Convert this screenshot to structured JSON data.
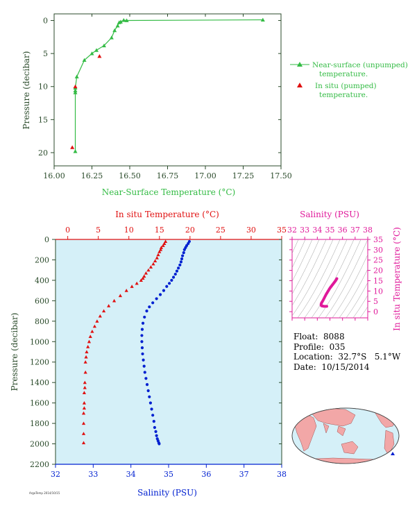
{
  "info": {
    "float": "Float:  8088",
    "profile": "Profile:  035",
    "location": "Location:  32.7°S   5.1°W",
    "date": "Date:  10/15/2014"
  },
  "footer": "ArgoTemp 2014/10/15",
  "colors": {
    "green": "#33bb44",
    "red": "#e01010",
    "blue": "#0020d0",
    "magenta": "#e0199a",
    "panel_bg": "#d5f0f8",
    "axis_dark": "#2a4a2a"
  },
  "chart_data": [
    {
      "type": "line",
      "id": "near-surface",
      "xlabel": "Near-Surface Temperature (°C)",
      "ylabel": "Pressure (decibar)",
      "xlim": [
        16.0,
        17.5
      ],
      "ylim": [
        22,
        -1
      ],
      "xticks": [
        16.0,
        16.25,
        16.5,
        16.75,
        17.0,
        17.25,
        17.5
      ],
      "xticklabels": [
        "16.00",
        "16.25",
        "16.50",
        "16.75",
        "17.00",
        "17.25",
        "17.50"
      ],
      "yticks": [
        0,
        5,
        10,
        15,
        20
      ],
      "series": [
        {
          "name": "Near-surface (unpumped) temperature.",
          "marker": "triangle",
          "color": "#33bb44",
          "x": [
            17.38,
            16.48,
            16.46,
            16.44,
            16.43,
            16.42,
            16.4,
            16.38,
            16.33,
            16.28,
            16.25,
            16.2,
            16.15,
            16.14,
            16.14,
            16.14,
            16.14
          ],
          "y": [
            -0.1,
            0.0,
            -0.05,
            0.2,
            0.3,
            0.8,
            1.5,
            2.6,
            3.8,
            4.5,
            5.0,
            6.0,
            8.5,
            10.2,
            10.6,
            10.9,
            19.8
          ]
        },
        {
          "name": "In situ (pumped) temperature.",
          "marker": "triangle",
          "color": "#e01010",
          "x": [
            16.3,
            16.14,
            16.12
          ],
          "y": [
            5.4,
            10.0,
            19.2
          ]
        }
      ]
    },
    {
      "type": "scatter",
      "id": "profile",
      "ylabel": "Pressure (decibar)",
      "xlabel_top": "In situ Temperature (°C)",
      "xlabel_bottom": "Salinity (PSU)",
      "ylim": [
        2200,
        0
      ],
      "yticks": [
        0,
        200,
        400,
        600,
        800,
        1000,
        1200,
        1400,
        1600,
        1800,
        2000,
        2200
      ],
      "temp_xlim": [
        -2,
        35
      ],
      "temp_xticks": [
        0,
        5,
        10,
        15,
        20,
        25,
        30,
        35
      ],
      "sal_xlim": [
        32,
        38
      ],
      "sal_xticks": [
        32,
        33,
        34,
        35,
        36,
        37,
        38
      ],
      "temperature": {
        "name": "In situ Temperature (°C)",
        "color": "#e01010",
        "marker": "triangle",
        "x": [
          16.0,
          15.8,
          15.6,
          15.3,
          15.2,
          15.0,
          14.8,
          14.6,
          14.3,
          14.0,
          13.6,
          13.2,
          12.8,
          12.5,
          12.3,
          12.0,
          11.3,
          10.5,
          9.6,
          8.6,
          7.6,
          6.7,
          5.9,
          5.3,
          4.8,
          4.4,
          4.0,
          3.7,
          3.5,
          3.3,
          3.1,
          3.0,
          2.9,
          2.9,
          2.8,
          2.8,
          2.7,
          2.7,
          2.7,
          2.6,
          2.6,
          2.6,
          2.6
        ],
        "y": [
          20,
          40,
          60,
          80,
          100,
          120,
          150,
          180,
          210,
          240,
          270,
          300,
          330,
          360,
          380,
          400,
          430,
          460,
          500,
          550,
          600,
          650,
          700,
          750,
          800,
          850,
          900,
          950,
          1000,
          1050,
          1100,
          1150,
          1200,
          1300,
          1400,
          1450,
          1500,
          1600,
          1650,
          1700,
          1800,
          1900,
          1990
        ]
      },
      "salinity": {
        "name": "Salinity (PSU)",
        "color": "#0020d0",
        "marker": "circle",
        "x": [
          35.55,
          35.52,
          35.48,
          35.45,
          35.42,
          35.4,
          35.37,
          35.35,
          35.33,
          35.3,
          35.26,
          35.22,
          35.18,
          35.13,
          35.08,
          35.02,
          34.95,
          34.87,
          34.78,
          34.68,
          34.58,
          34.49,
          34.42,
          34.36,
          34.32,
          34.3,
          34.29,
          34.29,
          34.3,
          34.31,
          34.33,
          34.35,
          34.37,
          34.4,
          34.43,
          34.46,
          34.49,
          34.52,
          34.55,
          34.58,
          34.61,
          34.63,
          34.66,
          34.68,
          34.7,
          34.72,
          34.74,
          34.75
        ],
        "y": [
          20,
          40,
          60,
          80,
          100,
          130,
          160,
          190,
          220,
          250,
          280,
          310,
          340,
          370,
          400,
          430,
          460,
          500,
          540,
          580,
          620,
          660,
          700,
          760,
          820,
          880,
          940,
          1000,
          1060,
          1120,
          1180,
          1240,
          1300,
          1360,
          1420,
          1480,
          1540,
          1600,
          1660,
          1720,
          1780,
          1840,
          1880,
          1920,
          1950,
          1970,
          1990,
          2000
        ]
      }
    },
    {
      "type": "scatter",
      "id": "ts-diagram",
      "xlabel": "Salinity (PSU)",
      "ylabel": "In situ Temperature (°C)",
      "xlim": [
        32,
        38
      ],
      "ylim": [
        -3,
        35
      ],
      "xticks": [
        32,
        33,
        34,
        35,
        36,
        37,
        38
      ],
      "yticks": [
        0,
        5,
        10,
        15,
        20,
        25,
        30,
        35
      ],
      "series": [
        {
          "color": "#e0199a",
          "marker": "circle",
          "x": [
            35.55,
            35.5,
            35.45,
            35.4,
            35.35,
            35.3,
            35.25,
            35.2,
            35.15,
            35.1,
            35.05,
            35.0,
            34.95,
            34.9,
            34.85,
            34.8,
            34.75,
            34.7,
            34.65,
            34.6,
            34.55,
            34.5,
            34.45,
            34.4,
            34.35,
            34.32,
            34.3,
            34.3,
            34.31,
            34.33,
            34.36,
            34.4,
            34.45,
            34.5,
            34.55,
            34.62,
            34.7,
            34.75
          ],
          "y": [
            16.0,
            15.5,
            15.0,
            14.6,
            14.2,
            13.8,
            13.4,
            13.0,
            12.6,
            12.2,
            11.8,
            11.4,
            10.9,
            10.4,
            9.9,
            9.4,
            8.9,
            8.4,
            7.8,
            7.2,
            6.6,
            6.0,
            5.4,
            4.9,
            4.4,
            4.0,
            3.6,
            3.3,
            3.1,
            2.9,
            2.8,
            2.7,
            2.7,
            2.6,
            2.6,
            2.6,
            2.6,
            2.6
          ]
        }
      ]
    }
  ]
}
